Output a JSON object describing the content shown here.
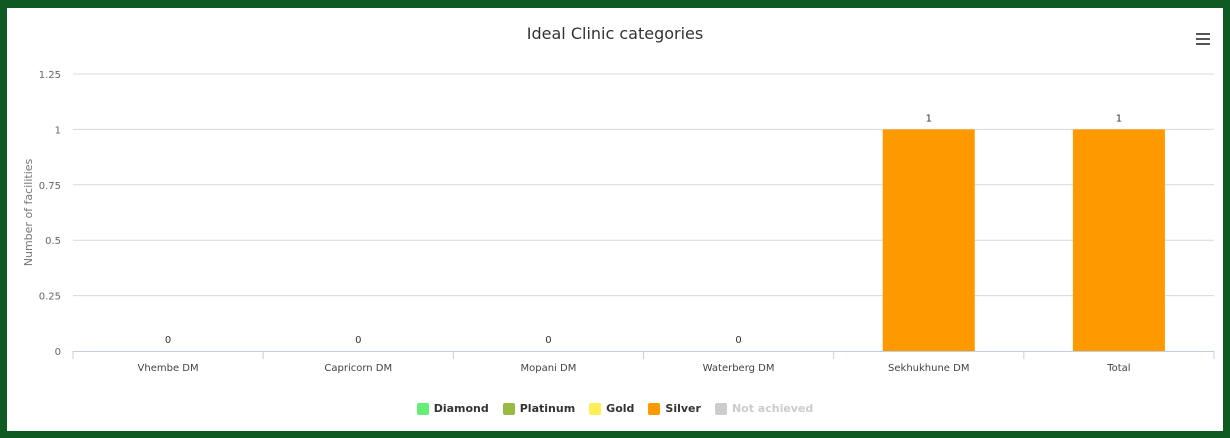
{
  "chart_data": {
    "type": "bar",
    "title": "Ideal Clinic categories",
    "ylabel": "Number of facilities",
    "xlabel": "",
    "categories": [
      "Vhembe DM",
      "Capricorn DM",
      "Mopani DM",
      "Waterberg DM",
      "Sekhukhune DM",
      "Total"
    ],
    "ylim": [
      0,
      1.25
    ],
    "yticks": [
      "0",
      "0.25",
      "0.5",
      "0.75",
      "1",
      "1.25"
    ],
    "grid": true,
    "legend_position": "bottom-center",
    "series": [
      {
        "name": "Diamond",
        "color": "#66ee77",
        "visible": true,
        "values": [
          0,
          0,
          0,
          0,
          0,
          0
        ]
      },
      {
        "name": "Platinum",
        "color": "#99bb44",
        "visible": true,
        "values": [
          0,
          0,
          0,
          0,
          0,
          0
        ]
      },
      {
        "name": "Gold",
        "color": "#ffee55",
        "visible": true,
        "values": [
          0,
          0,
          0,
          0,
          0,
          0
        ]
      },
      {
        "name": "Silver",
        "color": "#ff9900",
        "visible": true,
        "values": [
          0,
          0,
          0,
          0,
          1,
          1
        ]
      },
      {
        "name": "Not achieved",
        "color": "#cccccc",
        "visible": false,
        "values": [
          0,
          0,
          0,
          0,
          0,
          0
        ]
      }
    ],
    "data_labels": [
      "0",
      "0",
      "0",
      "0",
      "1",
      "1"
    ]
  },
  "menu_icon": "hamburger-menu-icon"
}
